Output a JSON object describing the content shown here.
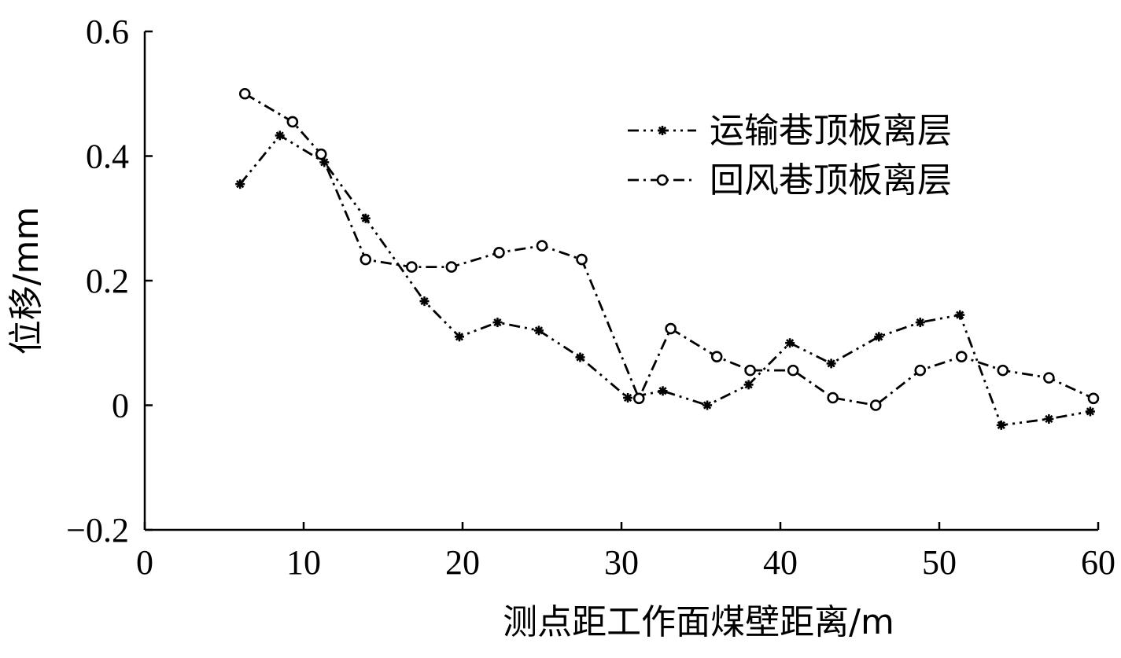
{
  "chart_data": {
    "type": "line",
    "xlabel": "测点距工作面煤壁距离/m",
    "ylabel": "位移/mm",
    "xlim": [
      0,
      60
    ],
    "ylim": [
      -0.2,
      0.6
    ],
    "xticks": [
      0,
      10,
      20,
      30,
      40,
      50,
      60
    ],
    "yticks": [
      -0.2,
      0,
      0.2,
      0.4,
      0.6
    ],
    "xtick_labels": [
      "0",
      "10",
      "20",
      "30",
      "40",
      "50",
      "60"
    ],
    "ytick_labels": [
      "−0.2",
      "0",
      "0.2",
      "0.4",
      "0.6"
    ],
    "grid": false,
    "legend_position": "top-right",
    "series": [
      {
        "name": "运输巷顶板离层",
        "marker": "asterisk",
        "line_style": "dash-dot-dot",
        "x": [
          6.0,
          8.5,
          11.3,
          13.9,
          17.6,
          19.8,
          22.2,
          24.8,
          27.4,
          30.4,
          32.6,
          35.4,
          38.0,
          40.6,
          43.2,
          46.2,
          48.8,
          51.3,
          53.9,
          56.9,
          59.5
        ],
        "y": [
          0.355,
          0.433,
          0.39,
          0.3,
          0.167,
          0.11,
          0.133,
          0.12,
          0.077,
          0.012,
          0.023,
          0.0,
          0.033,
          0.1,
          0.067,
          0.11,
          0.133,
          0.145,
          -0.032,
          -0.022,
          -0.01
        ]
      },
      {
        "name": "回风巷顶板离层",
        "marker": "circle",
        "line_style": "dash-dot",
        "x": [
          6.3,
          9.3,
          11.1,
          13.9,
          16.8,
          19.3,
          22.3,
          25.0,
          27.5,
          31.1,
          33.1,
          36.0,
          38.1,
          40.8,
          43.3,
          46.0,
          48.8,
          51.4,
          54.0,
          56.9,
          59.7
        ],
        "y": [
          0.5,
          0.455,
          0.403,
          0.234,
          0.222,
          0.222,
          0.245,
          0.256,
          0.234,
          0.011,
          0.123,
          0.078,
          0.056,
          0.056,
          0.012,
          0.0,
          0.056,
          0.078,
          0.056,
          0.044,
          0.011
        ]
      }
    ]
  }
}
